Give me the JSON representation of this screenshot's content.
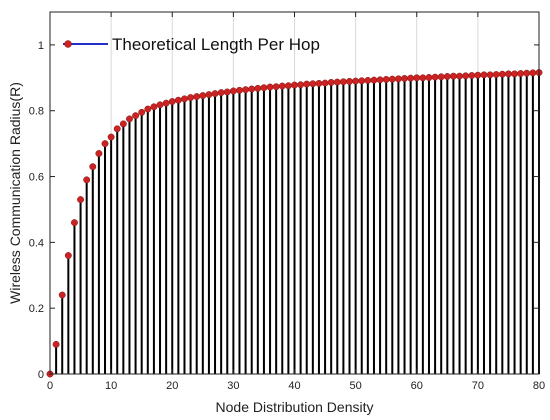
{
  "chart_data": {
    "type": "stem",
    "title": "",
    "xlabel": "Node Distribution Density",
    "ylabel": "Wireless Communication Radius(R)",
    "xlim": [
      0,
      80
    ],
    "ylim": [
      0,
      1.1
    ],
    "xticks": [
      0,
      10,
      20,
      30,
      40,
      50,
      60,
      70,
      80
    ],
    "yticks": [
      0,
      0.2,
      0.4,
      0.6,
      0.8,
      1
    ],
    "xtick_labels": [
      "0",
      "10",
      "20",
      "30",
      "40",
      "50",
      "60",
      "70",
      "80"
    ],
    "ytick_labels": [
      "0",
      "0.2",
      "0.4",
      "0.6",
      "0.8",
      "1"
    ],
    "grid": "x",
    "legend_position": "top-left",
    "series": [
      {
        "name": "Theoretical Length Per Hop",
        "line_color": "#1f2fc8",
        "marker_color": "#cc2222",
        "stem_color": "#000000",
        "x": [
          0,
          1,
          2,
          3,
          4,
          5,
          6,
          7,
          8,
          9,
          10,
          11,
          12,
          13,
          14,
          15,
          16,
          17,
          18,
          19,
          20,
          21,
          22,
          23,
          24,
          25,
          26,
          27,
          28,
          29,
          30,
          31,
          32,
          33,
          34,
          35,
          36,
          37,
          38,
          39,
          40,
          41,
          42,
          43,
          44,
          45,
          46,
          47,
          48,
          49,
          50,
          51,
          52,
          53,
          54,
          55,
          56,
          57,
          58,
          59,
          60,
          61,
          62,
          63,
          64,
          65,
          66,
          67,
          68,
          69,
          70,
          71,
          72,
          73,
          74,
          75,
          76,
          77,
          78,
          79,
          80
        ],
        "values": [
          0.0,
          0.09,
          0.24,
          0.36,
          0.46,
          0.53,
          0.59,
          0.63,
          0.67,
          0.7,
          0.72,
          0.745,
          0.76,
          0.775,
          0.785,
          0.795,
          0.805,
          0.812,
          0.818,
          0.823,
          0.828,
          0.832,
          0.836,
          0.84,
          0.843,
          0.846,
          0.849,
          0.852,
          0.855,
          0.857,
          0.86,
          0.862,
          0.864,
          0.866,
          0.868,
          0.87,
          0.872,
          0.873,
          0.875,
          0.876,
          0.878,
          0.879,
          0.881,
          0.882,
          0.883,
          0.884,
          0.886,
          0.887,
          0.888,
          0.889,
          0.89,
          0.891,
          0.892,
          0.893,
          0.894,
          0.895,
          0.896,
          0.897,
          0.898,
          0.899,
          0.9,
          0.9,
          0.901,
          0.902,
          0.903,
          0.904,
          0.905,
          0.905,
          0.906,
          0.907,
          0.908,
          0.909,
          0.909,
          0.91,
          0.911,
          0.912,
          0.912,
          0.913,
          0.914,
          0.915,
          0.916
        ]
      }
    ]
  }
}
